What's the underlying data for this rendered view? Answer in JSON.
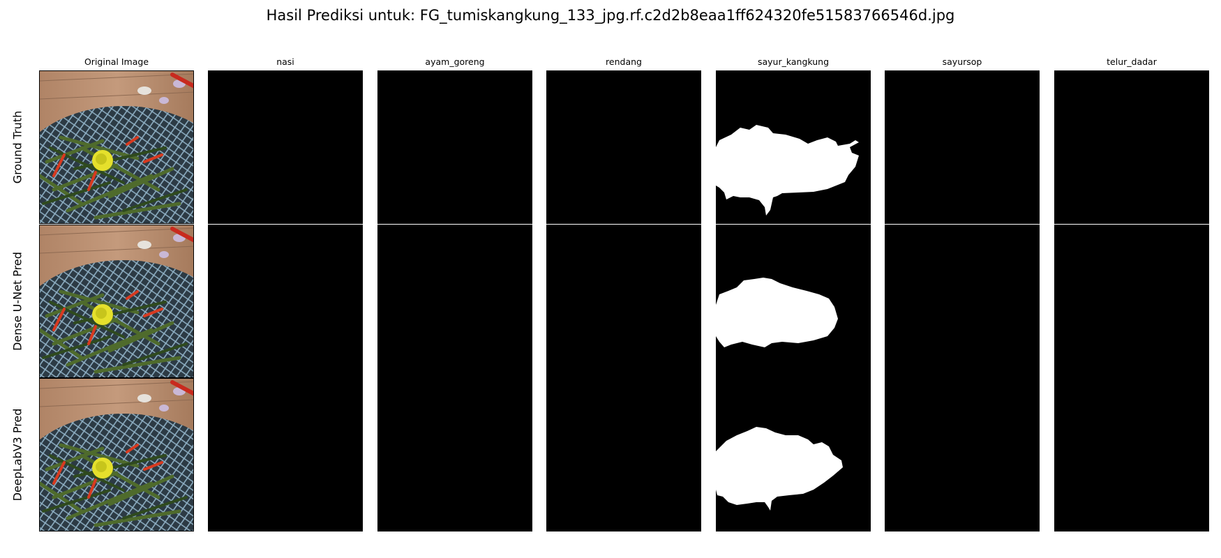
{
  "figure": {
    "title": "Hasil Prediksi untuk: FG_tumiskangkung_133_jpg.rf.c2d2b8eaa1ff624320fe51583766546d.jpg"
  },
  "columns": [
    "Original Image",
    "nasi",
    "ayam_goreng",
    "rendang",
    "sayur_kangkung",
    "sayursop",
    "telur_dadar"
  ],
  "rows": [
    "Ground Truth",
    "Dense U-Net Pred",
    "DeepLabV3 Pred"
  ],
  "masks": {
    "description_active_class": "sayur_kangkung",
    "mask_colors": {
      "background": "#000000",
      "foreground": "#ffffff"
    }
  }
}
